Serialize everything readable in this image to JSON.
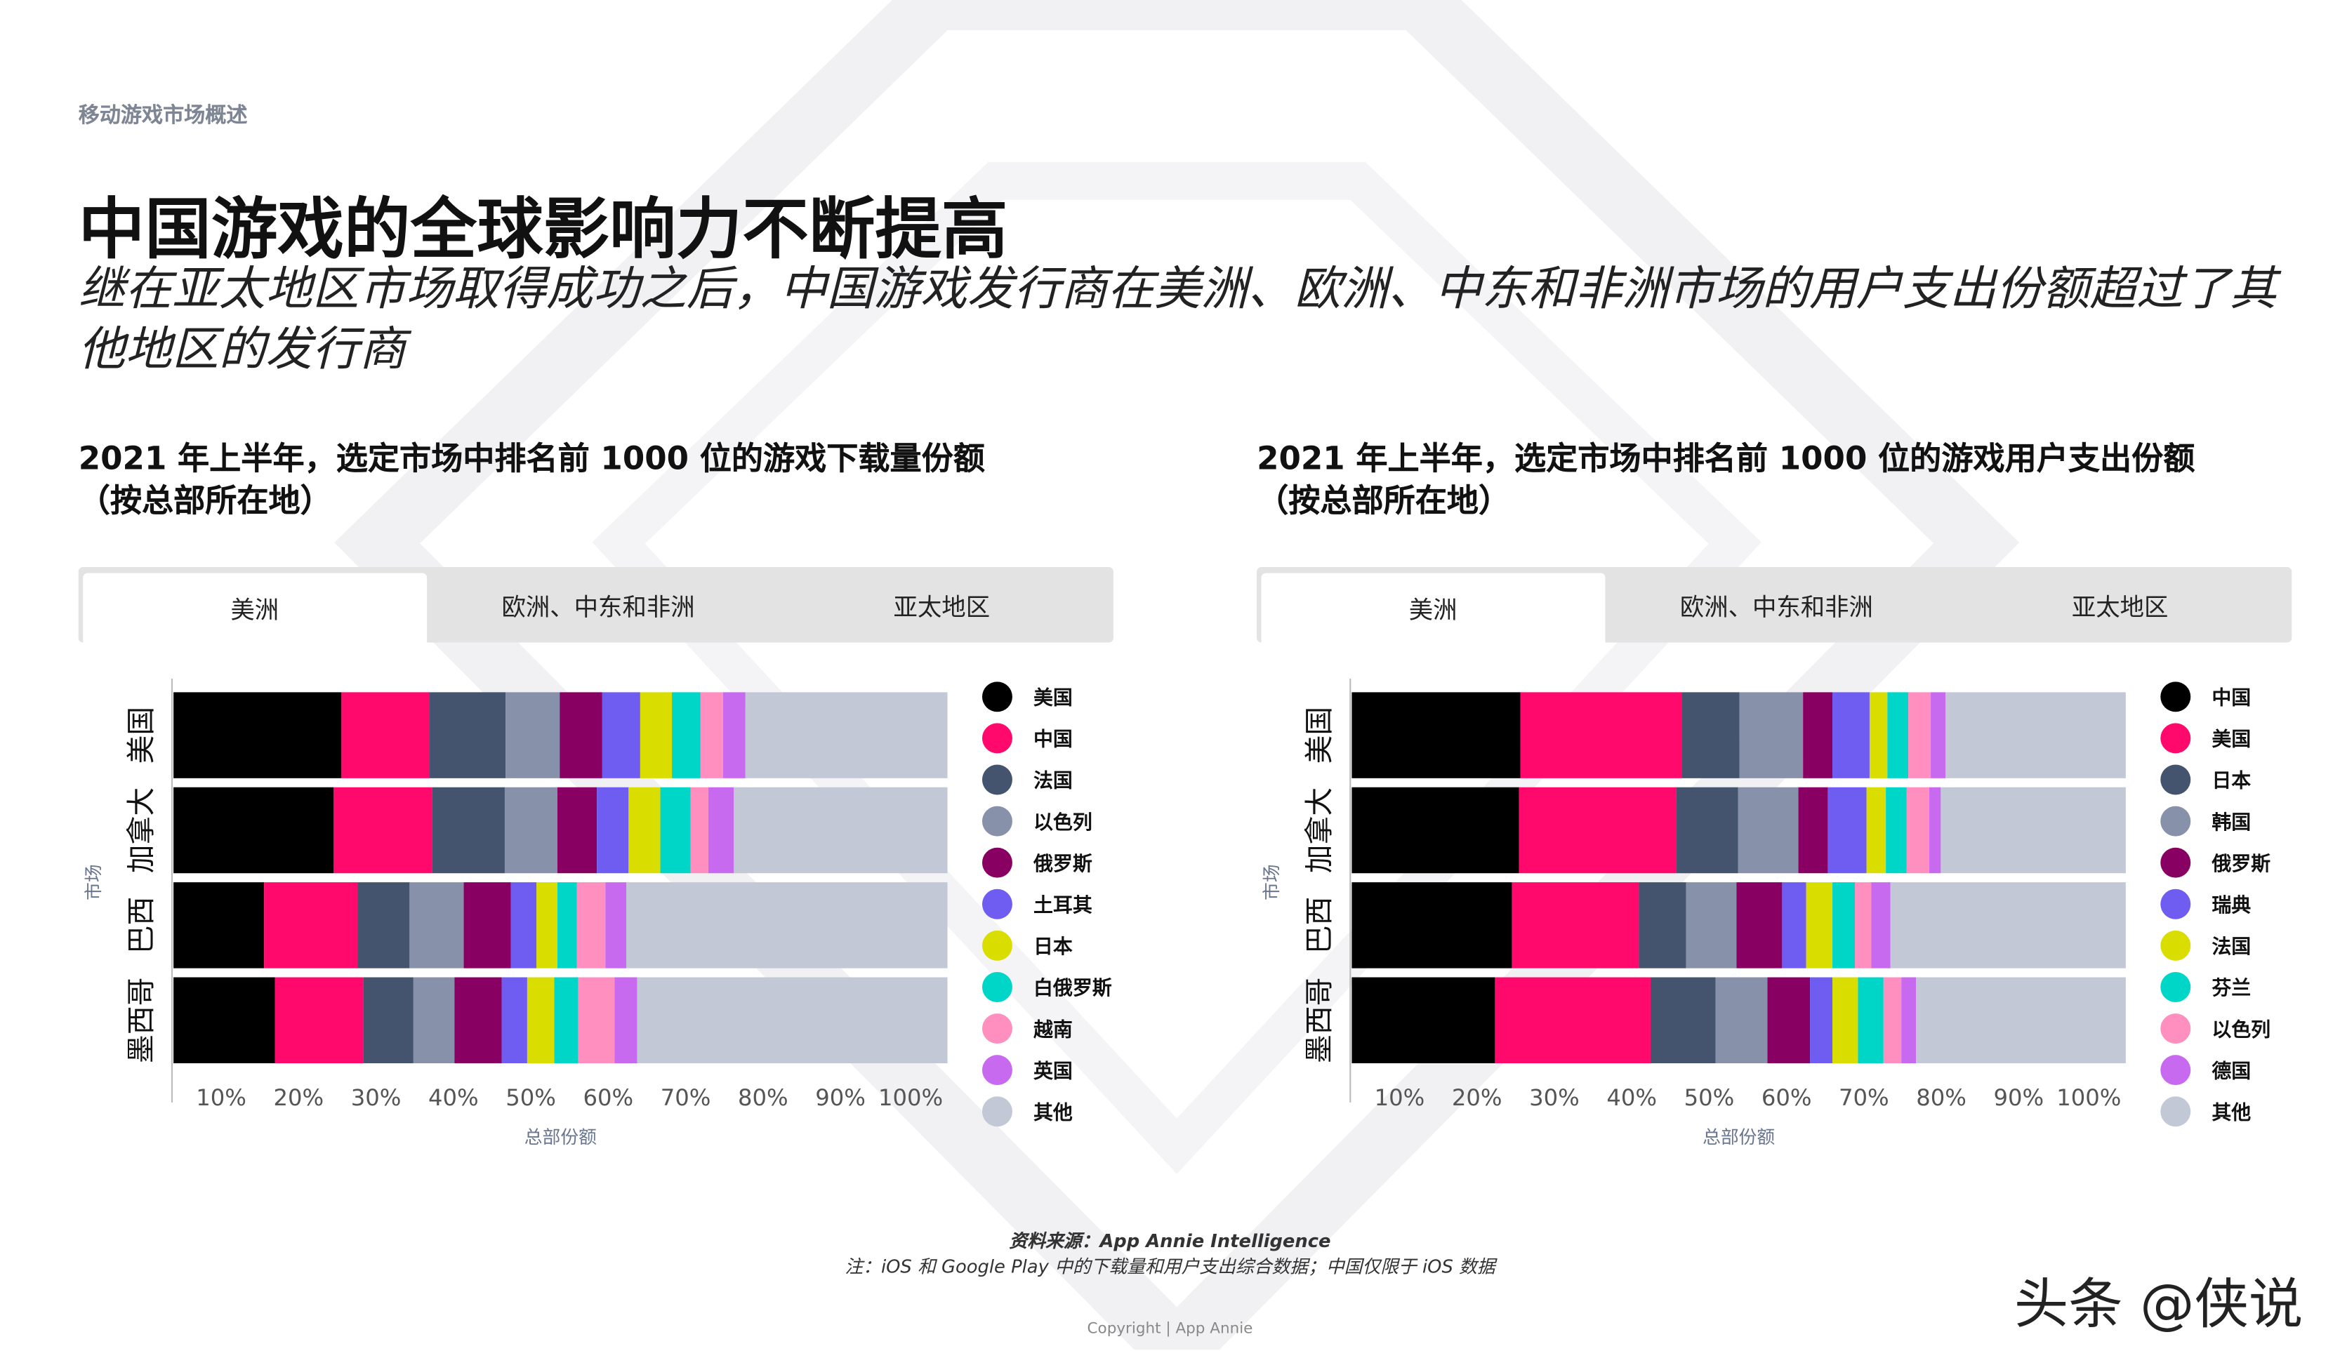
{
  "section": "移动游戏市场概述",
  "title": "中国游戏的全球影响力不断提高",
  "subtitle": "继在亚太地区市场取得成功之后，中国游戏发行商在美洲、欧洲、中东和非洲市场的用户支出份额超过了其他地区的发行商",
  "source": "资料来源：App Annie Intelligence",
  "note": "注：iOS 和 Google Play 中的下载量和用户支出综合数据；中国仅限于 iOS 数据",
  "copyright": "Copyright | App Annie",
  "watermark": "头条 @侠说",
  "chart_data": [
    {
      "type": "bar",
      "orientation": "horizontal",
      "stacked": true,
      "title": "2021 年上半年，选定市场中排名前 1000 位的游戏下载量份额（按总部所在地）",
      "tabs": [
        "美洲",
        "欧洲、中东和非洲",
        "亚太地区"
      ],
      "x_label": "总部份额",
      "y_label": "市场",
      "categories": [
        "美国",
        "加拿大",
        "巴西",
        "墨西哥"
      ],
      "xlim": [
        0,
        100
      ],
      "xticks": [
        {
          "value": 10,
          "label": "10%"
        },
        {
          "value": 20,
          "label": "20%"
        },
        {
          "value": 30,
          "label": "30%"
        },
        {
          "value": 40,
          "label": "40%"
        },
        {
          "value": 50,
          "label": "50%"
        },
        {
          "value": 60,
          "label": "60%"
        },
        {
          "value": 70,
          "label": "70%"
        },
        {
          "value": 80,
          "label": "80%"
        },
        {
          "value": 90,
          "label": "90%"
        },
        {
          "value": 100,
          "label": "100%"
        }
      ],
      "grid": false,
      "legend": "right",
      "series": [
        {
          "name": "美国",
          "color": "#000000",
          "values": [
            21.7,
            20.7,
            11.7,
            13.1
          ]
        },
        {
          "name": "中国",
          "color": "#ff0a6c",
          "values": [
            11.4,
            12.7,
            12.1,
            11.4
          ]
        },
        {
          "name": "法国",
          "color": "#44546f",
          "values": [
            9.8,
            9.4,
            6.7,
            6.5
          ]
        },
        {
          "name": "以色列",
          "color": "#8791a9",
          "values": [
            7.0,
            6.8,
            7.0,
            5.3
          ]
        },
        {
          "name": "俄罗斯",
          "color": "#880062",
          "values": [
            5.5,
            5.1,
            6.1,
            6.1
          ]
        },
        {
          "name": "土耳其",
          "color": "#6f5cf0",
          "values": [
            4.9,
            4.1,
            3.3,
            3.3
          ]
        },
        {
          "name": "日本",
          "color": "#d9de00",
          "values": [
            4.1,
            4.1,
            2.7,
            3.5
          ]
        },
        {
          "name": "白俄罗斯",
          "color": "#00d6c8",
          "values": [
            3.7,
            3.9,
            2.5,
            3.1
          ]
        },
        {
          "name": "越南",
          "color": "#ff8fbf",
          "values": [
            2.9,
            2.3,
            3.7,
            4.7
          ]
        },
        {
          "name": "英国",
          "color": "#c86af0",
          "values": [
            2.9,
            3.3,
            2.7,
            2.9
          ]
        },
        {
          "name": "其他",
          "color": "#c3c8d6",
          "values": [
            26.1,
            27.6,
            41.5,
            40.1
          ]
        }
      ]
    },
    {
      "type": "bar",
      "orientation": "horizontal",
      "stacked": true,
      "title": "2021 年上半年，选定市场中排名前 1000 位的游戏用户支出份额（按总部所在地）",
      "tabs": [
        "美洲",
        "欧洲、中东和非洲",
        "亚太地区"
      ],
      "x_label": "总部份额",
      "y_label": "市场",
      "categories": [
        "美国",
        "加拿大",
        "巴西",
        "墨西哥"
      ],
      "xlim": [
        0,
        100
      ],
      "xticks": [
        {
          "value": 10,
          "label": "10%"
        },
        {
          "value": 20,
          "label": "20%"
        },
        {
          "value": 30,
          "label": "30%"
        },
        {
          "value": 40,
          "label": "40%"
        },
        {
          "value": 50,
          "label": "50%"
        },
        {
          "value": 60,
          "label": "60%"
        },
        {
          "value": 70,
          "label": "70%"
        },
        {
          "value": 80,
          "label": "80%"
        },
        {
          "value": 90,
          "label": "90%"
        },
        {
          "value": 100,
          "label": "100%"
        }
      ],
      "grid": false,
      "legend": "right",
      "series": [
        {
          "name": "中国",
          "color": "#000000",
          "values": [
            21.8,
            21.6,
            20.7,
            18.5
          ]
        },
        {
          "name": "美国",
          "color": "#ff0a6c",
          "values": [
            20.8,
            20.3,
            16.4,
            20.1
          ]
        },
        {
          "name": "日本",
          "color": "#44546f",
          "values": [
            7.5,
            8.0,
            6.1,
            8.4
          ]
        },
        {
          "name": "韩国",
          "color": "#8791a9",
          "values": [
            8.2,
            7.8,
            6.5,
            6.7
          ]
        },
        {
          "name": "俄罗斯",
          "color": "#880062",
          "values": [
            3.8,
            3.8,
            5.9,
            5.5
          ]
        },
        {
          "name": "瑞典",
          "color": "#6f5cf0",
          "values": [
            4.8,
            5.0,
            3.1,
            2.9
          ]
        },
        {
          "name": "法国",
          "color": "#d9de00",
          "values": [
            2.3,
            2.5,
            3.4,
            3.3
          ]
        },
        {
          "name": "芬兰",
          "color": "#00d6c8",
          "values": [
            2.7,
            2.7,
            2.9,
            3.3
          ]
        },
        {
          "name": "以色列",
          "color": "#ff8fbf",
          "values": [
            2.9,
            2.9,
            2.1,
            2.3
          ]
        },
        {
          "name": "德国",
          "color": "#c86af0",
          "values": [
            1.9,
            1.5,
            2.5,
            1.9
          ]
        },
        {
          "name": "其他",
          "color": "#c3c8d6",
          "values": [
            23.3,
            23.9,
            30.4,
            27.1
          ]
        }
      ]
    }
  ]
}
